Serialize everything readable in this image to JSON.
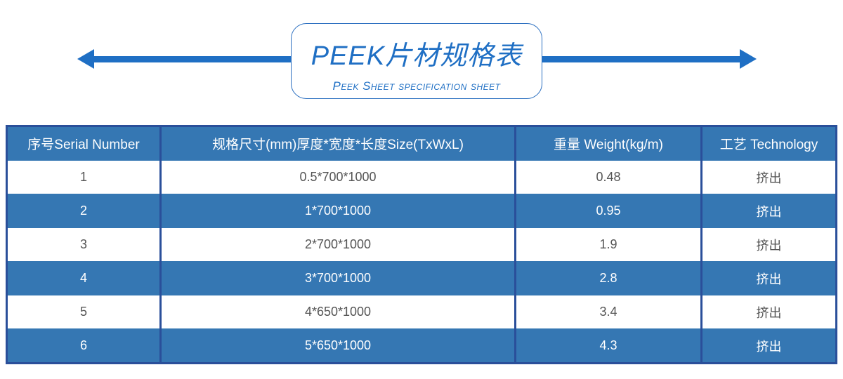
{
  "title": {
    "main": "PEEK片材规格表",
    "sub": "Peek Sheet specification sheet"
  },
  "colors": {
    "accent": "#1f6fc4",
    "table_blue": "#3577b3",
    "border": "#2a4f9a"
  },
  "table": {
    "headers": [
      "序号Serial Number",
      "规格尺寸(mm)厚度*宽度*长度Size(TxWxL)",
      "重量 Weight(kg/m)",
      "工艺 Technology"
    ],
    "rows": [
      [
        "1",
        "0.5*700*1000",
        "0.48",
        "挤出"
      ],
      [
        "2",
        "1*700*1000",
        "0.95",
        "挤出"
      ],
      [
        "3",
        "2*700*1000",
        "1.9",
        "挤出"
      ],
      [
        "4",
        "3*700*1000",
        "2.8",
        "挤出"
      ],
      [
        "5",
        "4*650*1000",
        "3.4",
        "挤出"
      ],
      [
        "6",
        "5*650*1000",
        "4.3",
        "挤出"
      ]
    ]
  }
}
